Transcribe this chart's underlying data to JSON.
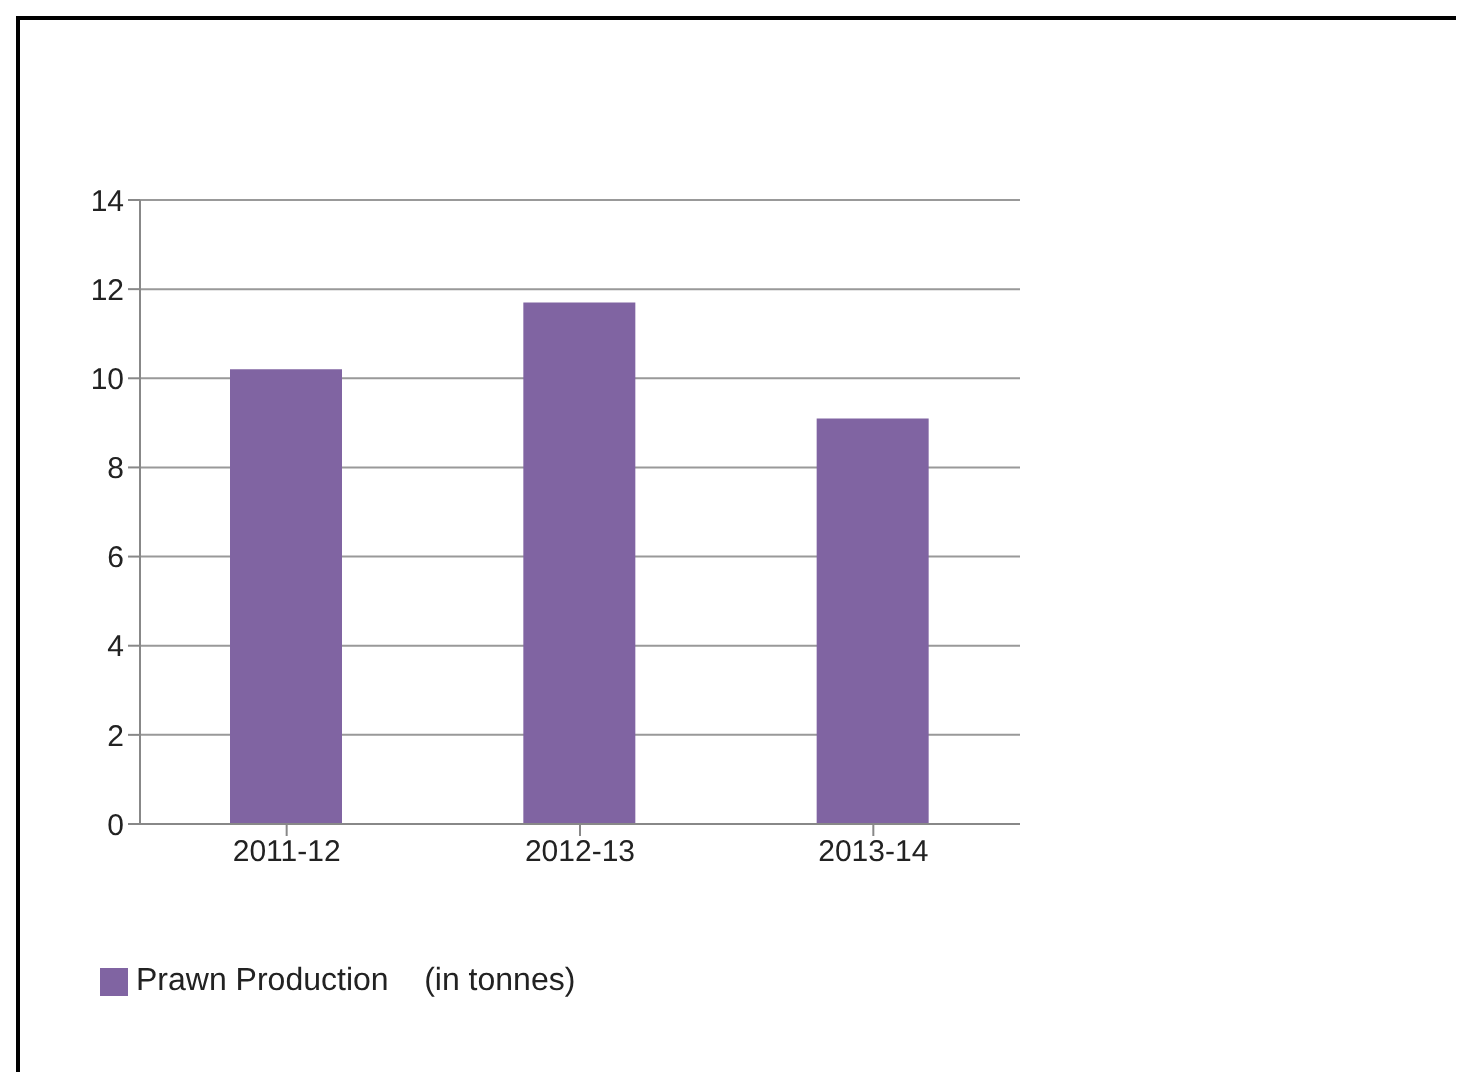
{
  "chart_data": {
    "type": "bar",
    "categories": [
      "2011-12",
      "2012-13",
      "2013-14"
    ],
    "series": [
      {
        "name": "Prawn Production    (in tonnes)",
        "color": "#8064a2",
        "values": [
          10.2,
          11.7,
          9.1
        ]
      }
    ],
    "ylim": [
      0,
      14
    ],
    "yticks": [
      0,
      2,
      4,
      6,
      8,
      10,
      12,
      14
    ],
    "grid": "y",
    "legend": "bottom left"
  }
}
